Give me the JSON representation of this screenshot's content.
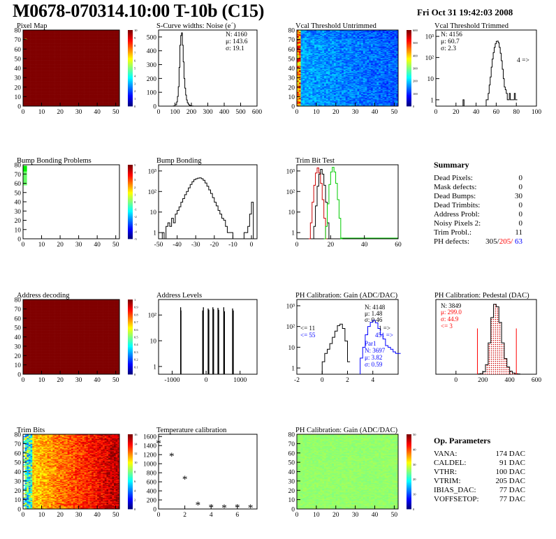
{
  "header": {
    "title": "M0678-070314.10:00 T-10b (C15)",
    "date": "Fri Oct 31 19:42:03 2008"
  },
  "panels": {
    "pixel_map": {
      "title": "Pixel Map",
      "xticks": [
        "0",
        "10",
        "20",
        "30",
        "40",
        "50"
      ],
      "yticks": [
        "0",
        "10",
        "20",
        "30",
        "40",
        "50",
        "60",
        "70",
        "80"
      ],
      "scale": [
        "0",
        "1",
        "2",
        "3",
        "4",
        "5",
        "6",
        "7",
        "8",
        "9",
        "10"
      ]
    },
    "scurve": {
      "title": "S-Curve widths: Noise (e´)",
      "stats": [
        "N: 4160",
        "μ: 143.6",
        "σ: 19.1"
      ],
      "xticks": [
        "0",
        "100",
        "200",
        "300",
        "400",
        "500",
        "600"
      ],
      "yticks": [
        "0",
        "100",
        "200",
        "300",
        "400",
        "500"
      ]
    },
    "vcal_untrimmed": {
      "title": "Vcal Threshold Untrimmed",
      "xticks": [
        "0",
        "10",
        "20",
        "30",
        "40",
        "50"
      ],
      "yticks": [
        "0",
        "10",
        "20",
        "30",
        "40",
        "50",
        "60",
        "70",
        "80"
      ],
      "scale": [
        "0",
        "100",
        "200",
        "300",
        "400",
        "500",
        "600"
      ]
    },
    "vcal_trimmed": {
      "title": "Vcal Threshold Trimmed",
      "stats": [
        "N: 4156",
        "μ: 60.7",
        "σ:  2.3"
      ],
      "overflow": "4 =>",
      "xticks": [
        "0",
        "20",
        "40",
        "60",
        "80",
        "100"
      ],
      "yticks": [
        "1",
        "10",
        "10²",
        "10³"
      ]
    },
    "bump_problems": {
      "title": "Bump Bonding Problems",
      "xticks": [
        "0",
        "10",
        "20",
        "30",
        "40",
        "50"
      ],
      "yticks": [
        "0",
        "10",
        "20",
        "30",
        "40",
        "50",
        "60",
        "70",
        "80"
      ],
      "scale": [
        "-5",
        "-4",
        "-3",
        "-2",
        "-1",
        "0",
        "1",
        "2",
        "3",
        "4",
        "5"
      ]
    },
    "bump_bonding": {
      "title": "Bump Bonding",
      "xticks": [
        "-50",
        "-40",
        "-30",
        "-20",
        "-10",
        "0"
      ],
      "yticks": [
        "1",
        "10",
        "10²",
        "10³"
      ]
    },
    "trim_bit": {
      "title": "Trim Bit Test",
      "xticks": [
        "0",
        "20",
        "40",
        "60"
      ],
      "yticks": [
        "1",
        "10",
        "10²",
        "10³"
      ]
    },
    "address_decoding": {
      "title": "Address decoding",
      "xticks": [
        "0",
        "10",
        "20",
        "30",
        "40",
        "50"
      ],
      "yticks": [
        "0",
        "10",
        "20",
        "30",
        "40",
        "50",
        "60",
        "70",
        "80"
      ],
      "scale": [
        "0",
        "0.1",
        "0.2",
        "0.3",
        "0.4",
        "0.5",
        "0.6",
        "0.7",
        "0.8",
        "0.9",
        "1"
      ]
    },
    "address_levels": {
      "title": "Address Levels",
      "xticks": [
        "-1000",
        "0",
        "1000"
      ],
      "yticks": [
        "1",
        "10",
        "10²"
      ]
    },
    "ph_gain": {
      "title": "PH Calibration: Gain (ADC/DAC)",
      "stats": [
        "N: 4148",
        "μ: 1.48",
        "σ: 0.46"
      ],
      "under": [
        "<= 11",
        "<= 55"
      ],
      "over": [
        "1 =>",
        "451 =>"
      ],
      "blue_stats": [
        "Par1",
        "N: 3697",
        "μ: 3.82",
        "σ: 0.59"
      ],
      "xticks": [
        "-2",
        "0",
        "2",
        "4"
      ],
      "yticks": [
        "1",
        "10",
        "10²",
        "10³"
      ]
    },
    "ph_pedestal": {
      "title": "PH Calibration: Pedestal (DAC)",
      "stats_black": "N: 3849",
      "stats_red": [
        "μ: 299.0",
        "σ: 44.9",
        "<= 3"
      ],
      "xticks": [
        "0",
        "200",
        "400",
        "600"
      ],
      "yticks": [
        "0",
        "100",
        "200",
        "300",
        "400",
        "500",
        "600"
      ]
    },
    "trim_bits": {
      "title": "Trim Bits",
      "xticks": [
        "0",
        "10",
        "20",
        "30",
        "40",
        "50"
      ],
      "yticks": [
        "0",
        "10",
        "20",
        "30",
        "40",
        "50",
        "60",
        "70",
        "80"
      ],
      "scale": [
        "0",
        "2",
        "4",
        "6",
        "8",
        "10",
        "12",
        "14",
        "16"
      ]
    },
    "temperature": {
      "title": "Temperature calibration",
      "xticks": [
        "0",
        "2",
        "4",
        "6"
      ],
      "yticks": [
        "0",
        "200",
        "400",
        "600",
        "800",
        "1000",
        "1200",
        "1400",
        "1600"
      ]
    },
    "ph_gain_map": {
      "title": "PH Calibration: Gain (ADC/DAC)",
      "xticks": [
        "0",
        "10",
        "20",
        "30",
        "40",
        "50"
      ],
      "yticks": [
        "0",
        "10",
        "20",
        "30",
        "40",
        "50",
        "60",
        "70",
        "80"
      ],
      "scale": [
        "0",
        "10",
        "20",
        "30",
        "40",
        "50"
      ]
    }
  },
  "summary": {
    "heading": "Summary",
    "rows": [
      {
        "label": "Dead Pixels:",
        "value": "0"
      },
      {
        "label": "Mask defects:",
        "value": "0"
      },
      {
        "label": "Dead Bumps:",
        "value": "30"
      },
      {
        "label": "Dead Trimbits:",
        "value": "0"
      },
      {
        "label": "Address Probl:",
        "value": "0"
      },
      {
        "label": "Noisy Pixels 2:",
        "value": "0"
      },
      {
        "label": "Trim Probl.:",
        "value": "11"
      }
    ],
    "ph_label": "PH defects:",
    "ph_values": [
      "305/",
      "205/",
      " 63"
    ]
  },
  "op_params": {
    "heading": "Op. Parameters",
    "rows": [
      {
        "label": "VANA:",
        "value": "174 DAC"
      },
      {
        "label": "CALDEL:",
        "value": "91 DAC"
      },
      {
        "label": "VTHR:",
        "value": "100 DAC"
      },
      {
        "label": "VTRIM:",
        "value": "205 DAC"
      },
      {
        "label": "IBIAS_DAC:",
        "value": "77 DAC"
      },
      {
        "label": "VOFFSETOP:",
        "value": "77 DAC"
      }
    ]
  },
  "colors": {
    "red": "#ff0000",
    "blue": "#0000ff",
    "green": "#00dd00",
    "dark_red": "#cc0000"
  },
  "chart_data": [
    {
      "type": "heatmap",
      "title": "Pixel Map",
      "xlim": [
        0,
        52
      ],
      "ylim": [
        0,
        80
      ],
      "zlim": [
        0,
        10
      ],
      "fill_value": 10,
      "anomalies": [
        {
          "x": 1,
          "y": 70,
          "value": 6
        }
      ]
    },
    {
      "type": "bar",
      "title": "S-Curve widths: Noise (e´)",
      "xlim": [
        0,
        600
      ],
      "ylim": [
        0,
        550
      ],
      "x": [
        80,
        90,
        100,
        110,
        115,
        120,
        125,
        130,
        135,
        140,
        145,
        150,
        155,
        160,
        165,
        170,
        175,
        180,
        185,
        190,
        195,
        200,
        210
      ],
      "values": [
        0,
        2,
        10,
        30,
        70,
        140,
        280,
        440,
        510,
        530,
        440,
        320,
        200,
        130,
        80,
        45,
        25,
        15,
        8,
        5,
        3,
        1,
        0
      ]
    },
    {
      "type": "heatmap",
      "title": "Vcal Threshold Untrimmed",
      "xlim": [
        0,
        52
      ],
      "ylim": [
        0,
        80
      ],
      "zlim": [
        0,
        600
      ]
    },
    {
      "type": "bar",
      "title": "Vcal Threshold Trimmed",
      "log_y": true,
      "xlim": [
        0,
        100
      ],
      "ylim": [
        0.5,
        2000
      ],
      "x": [
        26,
        27,
        28,
        49,
        50,
        51,
        52,
        53,
        54,
        55,
        56,
        57,
        58,
        59,
        60,
        61,
        62,
        63,
        64,
        65,
        66,
        67,
        68,
        69,
        70,
        71,
        72,
        73,
        74,
        75,
        76,
        77,
        78,
        79,
        80
      ],
      "values": [
        0,
        1,
        0,
        0,
        1,
        1,
        2,
        5,
        12,
        35,
        85,
        170,
        300,
        450,
        580,
        600,
        500,
        300,
        160,
        70,
        28,
        10,
        4,
        3,
        2,
        1,
        1,
        2,
        1,
        1,
        1,
        1,
        2,
        1,
        1
      ]
    },
    {
      "type": "heatmap",
      "title": "Bump Bonding Problems",
      "xlim": [
        0,
        52
      ],
      "ylim": [
        0,
        80
      ],
      "zlim": [
        -5,
        5
      ],
      "anomalies": [
        {
          "x": 1,
          "y": 65,
          "value": 1
        }
      ]
    },
    {
      "type": "bar",
      "title": "Bump Bonding",
      "log_y": true,
      "xlim": [
        -50,
        3
      ],
      "ylim": [
        0.5,
        2000
      ],
      "x": [
        -49,
        -48,
        -47,
        -46,
        -45,
        -44,
        -43,
        -42,
        -41,
        -40,
        -39,
        -38,
        -37,
        -36,
        -35,
        -34,
        -33,
        -32,
        -31,
        -30,
        -29,
        -28,
        -27,
        -26,
        -25,
        -24,
        -23,
        -22,
        -21,
        -20,
        -19,
        -18,
        -17,
        -16,
        -15,
        -14,
        -13,
        -12,
        -11,
        -10,
        -9,
        -8,
        -7,
        -6,
        -5,
        -4,
        -3,
        -2,
        -1,
        0,
        1
      ],
      "values": [
        0,
        1,
        0,
        2,
        3,
        2,
        5,
        3,
        8,
        12,
        18,
        30,
        45,
        70,
        100,
        150,
        220,
        300,
        380,
        420,
        450,
        460,
        420,
        350,
        260,
        180,
        120,
        80,
        50,
        30,
        20,
        12,
        8,
        5,
        4,
        2,
        1,
        1,
        1,
        0,
        0,
        0,
        0,
        0,
        0,
        1,
        1,
        2,
        8,
        30,
        0
      ]
    },
    {
      "type": "line",
      "title": "Trim Bit Test",
      "log_y": true,
      "xlim": [
        0,
        60
      ],
      "ylim": [
        0.5,
        2000
      ],
      "series": [
        {
          "color": "#cc0000",
          "x": [
            7,
            8,
            9,
            10,
            11,
            12,
            13,
            14,
            15,
            16,
            17
          ],
          "values": [
            0,
            3,
            30,
            200,
            800,
            1400,
            800,
            250,
            40,
            5,
            0
          ]
        },
        {
          "color": "#000000",
          "x": [
            9,
            10,
            11,
            12,
            13,
            14,
            15,
            16,
            17,
            18,
            19
          ],
          "values": [
            0,
            2,
            20,
            180,
            700,
            1200,
            700,
            200,
            30,
            3,
            0
          ]
        },
        {
          "color": "#00cc00",
          "x": [
            16,
            17,
            18,
            19,
            20,
            21,
            22,
            23,
            24,
            25,
            26
          ],
          "values": [
            0,
            2,
            25,
            220,
            900,
            1500,
            900,
            250,
            40,
            5,
            0
          ]
        }
      ]
    },
    {
      "type": "heatmap",
      "title": "Address decoding",
      "xlim": [
        0,
        52
      ],
      "ylim": [
        0,
        80
      ],
      "zlim": [
        0,
        1
      ],
      "fill_value": 1
    },
    {
      "type": "bar",
      "title": "Address Levels",
      "log_y": true,
      "xlim": [
        -1400,
        1500
      ],
      "ylim": [
        0.5,
        400
      ],
      "x": [
        -750,
        -740,
        -100,
        -80,
        60,
        80,
        200,
        220,
        350,
        370,
        520,
        540,
        780,
        800
      ],
      "values": [
        200,
        150,
        150,
        200,
        180,
        160,
        200,
        170,
        190,
        160,
        200,
        140,
        180,
        150
      ]
    },
    {
      "type": "bar",
      "title": "PH Calibration: Gain (ADC/DAC)",
      "log_y": true,
      "xlim": [
        -2,
        6
      ],
      "ylim": [
        0.5,
        2000
      ],
      "series": [
        {
          "color": "#000000",
          "x": [
            0.0,
            0.2,
            0.4,
            0.6,
            0.8,
            1.0,
            1.2,
            1.4,
            1.6,
            1.8,
            2.0
          ],
          "values": [
            2,
            5,
            8,
            15,
            30,
            60,
            110,
            130,
            80,
            20,
            2
          ]
        },
        {
          "color": "#0000ff",
          "x": [
            3.0,
            3.2,
            3.4,
            3.6,
            3.8,
            4.0,
            4.2,
            4.4,
            4.6,
            4.8,
            5.0,
            5.2,
            5.4,
            5.6,
            5.8,
            6.0
          ],
          "values": [
            3,
            10,
            40,
            100,
            160,
            200,
            150,
            80,
            40,
            25,
            12,
            10,
            8,
            6,
            5,
            5
          ]
        }
      ]
    },
    {
      "type": "bar",
      "title": "PH Calibration: Pedestal (DAC)",
      "xlim": [
        -150,
        600
      ],
      "ylim": [
        0,
        620
      ],
      "x": [
        160,
        180,
        200,
        220,
        240,
        260,
        280,
        300,
        320,
        340,
        360,
        380,
        400,
        420,
        440,
        460
      ],
      "values": [
        2,
        5,
        20,
        80,
        260,
        470,
        580,
        560,
        430,
        260,
        130,
        60,
        25,
        10,
        4,
        2
      ],
      "cut_lines": [
        160,
        450
      ],
      "cut_height": 380
    },
    {
      "type": "heatmap",
      "title": "Trim Bits",
      "xlim": [
        0,
        52
      ],
      "ylim": [
        0,
        80
      ],
      "zlim": [
        0,
        16
      ]
    },
    {
      "type": "scatter",
      "title": "Temperature calibration",
      "xlim": [
        0,
        7.5
      ],
      "ylim": [
        0,
        1650
      ],
      "x": [
        0,
        1,
        2,
        3,
        4,
        5,
        6,
        7
      ],
      "values": [
        1460,
        1170,
        660,
        90,
        40,
        30,
        35,
        30
      ]
    },
    {
      "type": "heatmap",
      "title": "PH Calibration: Gain (ADC/DAC)",
      "xlim": [
        0,
        52
      ],
      "ylim": [
        0,
        80
      ],
      "zlim": [
        0,
        50
      ],
      "fill_value": 25
    }
  ]
}
